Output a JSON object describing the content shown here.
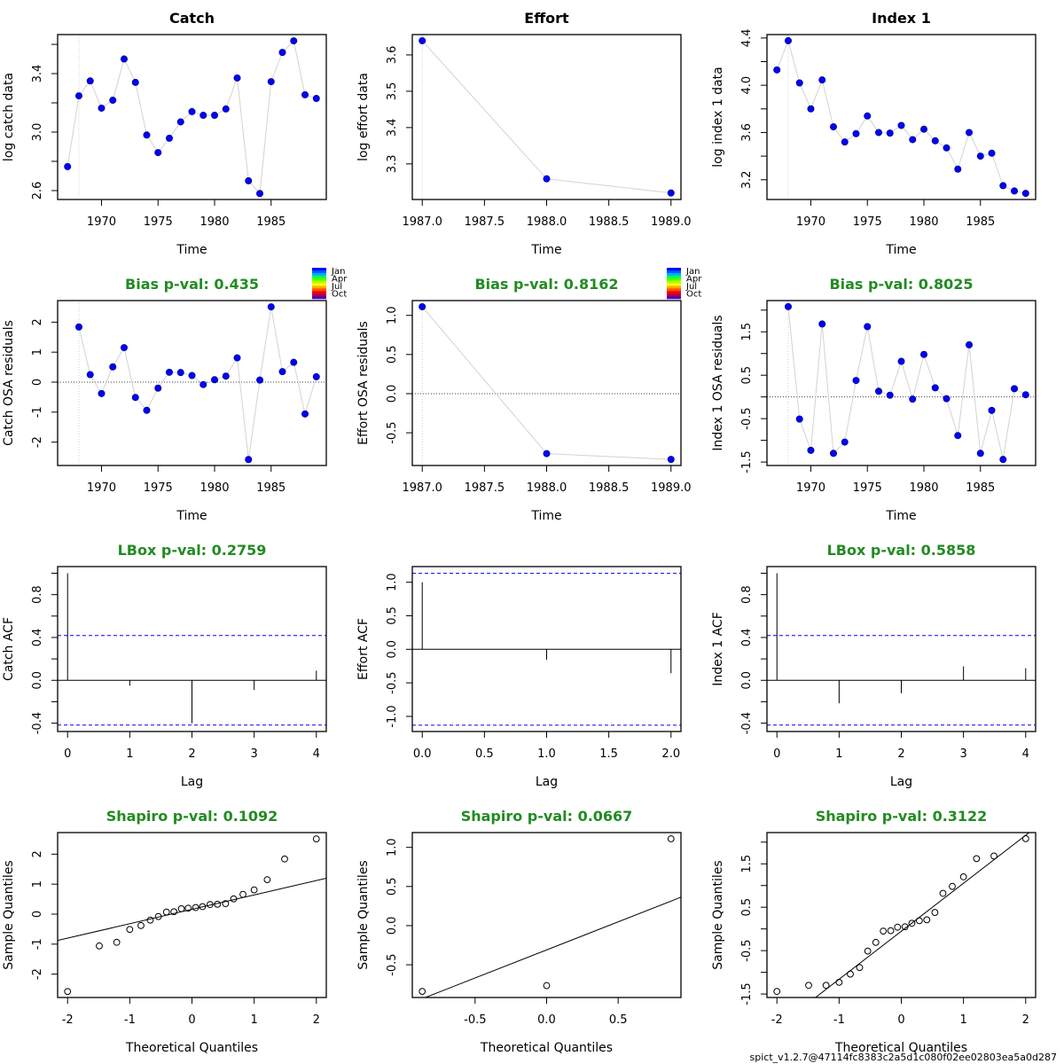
{
  "footer": "spict_v1.2.7@47114fc8383c2a5d1c080f02ee02803ea5a0d287",
  "month_legend": {
    "labels": [
      "Jan",
      "Apr",
      "Jul",
      "Oct"
    ],
    "colors": [
      "#0000FF",
      "#0055FF",
      "#00AAFF",
      "#00FF55",
      "#55FF00",
      "#AAFF00",
      "#FFFF00",
      "#FFAA00",
      "#FF5500",
      "#FF0000",
      "#AA0055",
      "#5500AA"
    ]
  },
  "colors": {
    "point_fill": "#0000FF",
    "line": "#d3d3d3",
    "pval_title": "#228B22",
    "conf_line": "#0000FF"
  },
  "chart_data": [
    {
      "id": "catch-data",
      "type": "line",
      "title": "Catch",
      "title_style": "main",
      "xlabel": "Time",
      "ylabel": "log catch data",
      "x": [
        1967,
        1968,
        1969,
        1970,
        1971,
        1972,
        1973,
        1974,
        1975,
        1976,
        1977,
        1978,
        1979,
        1980,
        1981,
        1982,
        1983,
        1984,
        1985,
        1986,
        1987,
        1988,
        1989
      ],
      "y": [
        2.764,
        3.248,
        3.35,
        3.164,
        3.218,
        3.5,
        3.34,
        2.98,
        2.86,
        2.958,
        3.07,
        3.14,
        3.115,
        3.115,
        3.158,
        3.37,
        2.667,
        2.58,
        3.345,
        3.545,
        3.624,
        3.255,
        3.23
      ],
      "xlim": [
        1966.12,
        1989.88
      ],
      "ylim": [
        2.539,
        3.667
      ],
      "xticks": [
        1970,
        1975,
        1980,
        1985
      ],
      "xtick_labels": [
        "1970",
        "1975",
        "1980",
        "1985"
      ],
      "yticks": [
        2.6,
        2.8,
        3.0,
        3.2,
        3.4,
        3.6
      ],
      "ytick_labels": [
        "2.6",
        "",
        "3.0",
        "",
        "3.4",
        ""
      ],
      "vline": 1968
    },
    {
      "id": "effort-data",
      "type": "line",
      "title": "Effort",
      "title_style": "main",
      "xlabel": "Time",
      "ylabel": "log effort data",
      "x": [
        1987,
        1988,
        1989
      ],
      "y": [
        3.639,
        3.259,
        3.22
      ],
      "xlim": [
        1986.92,
        1989.08
      ],
      "ylim": [
        3.202,
        3.656
      ],
      "xticks": [
        1987.0,
        1987.5,
        1988.0,
        1988.5,
        1989.0
      ],
      "xtick_labels": [
        "1987.0",
        "1987.5",
        "1988.0",
        "1988.5",
        "1989.0"
      ],
      "yticks": [
        3.3,
        3.4,
        3.5,
        3.6
      ],
      "ytick_labels": [
        "3.3",
        "3.4",
        "3.5",
        "3.6"
      ],
      "vline": 1987
    },
    {
      "id": "index1-data",
      "type": "line",
      "title": "Index 1",
      "title_style": "main",
      "xlabel": "Time",
      "ylabel": "log index 1 data",
      "x": [
        1967,
        1968,
        1969,
        1970,
        1971,
        1972,
        1973,
        1974,
        1975,
        1976,
        1977,
        1978,
        1979,
        1980,
        1981,
        1982,
        1983,
        1984,
        1985,
        1986,
        1987,
        1988,
        1989
      ],
      "y": [
        4.13,
        4.377,
        4.02,
        3.8,
        4.045,
        3.648,
        3.52,
        3.59,
        3.74,
        3.6,
        3.595,
        3.66,
        3.54,
        3.628,
        3.53,
        3.47,
        3.29,
        3.6,
        3.4,
        3.425,
        3.15,
        3.105,
        3.085
      ],
      "xlim": [
        1966.12,
        1989.88
      ],
      "ylim": [
        3.033,
        4.429
      ],
      "xticks": [
        1970,
        1975,
        1980,
        1985
      ],
      "xtick_labels": [
        "1970",
        "1975",
        "1980",
        "1985"
      ],
      "yticks": [
        3.2,
        3.4,
        3.6,
        3.8,
        4.0,
        4.2,
        4.4
      ],
      "ytick_labels": [
        "3.2",
        "",
        "3.6",
        "",
        "4.0",
        "",
        "4.4"
      ],
      "vline": 1968
    },
    {
      "id": "catch-osa",
      "type": "line",
      "title": "Bias p-val: 0.435",
      "title_style": "green",
      "xlabel": "Time",
      "ylabel": "Catch OSA residuals",
      "x": [
        1968,
        1969,
        1970,
        1971,
        1972,
        1973,
        1974,
        1975,
        1976,
        1977,
        1978,
        1979,
        1980,
        1981,
        1982,
        1983,
        1984,
        1985,
        1986,
        1987,
        1988,
        1989
      ],
      "y": [
        1.84,
        0.25,
        -0.38,
        0.51,
        1.15,
        -0.51,
        -0.94,
        -0.2,
        0.33,
        0.32,
        0.22,
        -0.08,
        0.08,
        0.2,
        0.81,
        -2.58,
        0.07,
        2.51,
        0.35,
        0.66,
        -1.06,
        0.18
      ],
      "xlim": [
        1966.12,
        1989.88
      ],
      "ylim": [
        -2.78,
        2.72
      ],
      "xticks": [
        1970,
        1975,
        1980,
        1985
      ],
      "xtick_labels": [
        "1970",
        "1975",
        "1980",
        "1985"
      ],
      "yticks": [
        -2,
        -1,
        0,
        1,
        2
      ],
      "ytick_labels": [
        "-2",
        "-1",
        "0",
        "1",
        "2"
      ],
      "hline": 0,
      "vline": 1968,
      "month_legend": true
    },
    {
      "id": "effort-osa",
      "type": "line",
      "title": "Bias p-val: 0.8162",
      "title_style": "green",
      "xlabel": "Time",
      "ylabel": "Effort OSA residuals",
      "x": [
        1987,
        1988,
        1989
      ],
      "y": [
        1.11,
        -0.766,
        -0.84
      ],
      "xlim": [
        1986.92,
        1989.08
      ],
      "ylim": [
        -0.918,
        1.189
      ],
      "xticks": [
        1987.0,
        1987.5,
        1988.0,
        1988.5,
        1989.0
      ],
      "xtick_labels": [
        "1987.0",
        "1987.5",
        "1988.0",
        "1988.5",
        "1989.0"
      ],
      "yticks": [
        -0.5,
        0.0,
        0.5,
        1.0
      ],
      "ytick_labels": [
        "-0.5",
        "0.0",
        "0.5",
        "1.0"
      ],
      "hline": 0,
      "vline": 1987,
      "month_legend": true
    },
    {
      "id": "index1-osa",
      "type": "line",
      "title": "Bias p-val: 0.8025",
      "title_style": "green",
      "xlabel": "Time",
      "ylabel": "Index 1 OSA residuals",
      "x": [
        1968,
        1969,
        1970,
        1971,
        1972,
        1973,
        1974,
        1975,
        1976,
        1977,
        1978,
        1979,
        1980,
        1981,
        1982,
        1983,
        1984,
        1985,
        1986,
        1987,
        1988,
        1989
      ],
      "y": [
        2.08,
        -0.51,
        -1.23,
        1.68,
        -1.3,
        -1.04,
        0.38,
        1.62,
        0.13,
        0.04,
        0.82,
        -0.05,
        0.98,
        0.21,
        -0.04,
        -0.89,
        1.2,
        -1.3,
        -0.31,
        -1.44,
        0.19,
        0.05
      ],
      "xlim": [
        1966.12,
        1989.88
      ],
      "ylim": [
        -1.58,
        2.22
      ],
      "xticks": [
        1970,
        1975,
        1980,
        1985
      ],
      "xtick_labels": [
        "1970",
        "1975",
        "1980",
        "1985"
      ],
      "yticks": [
        -1.5,
        -1.0,
        -0.5,
        0.0,
        0.5,
        1.0,
        1.5,
        2.0
      ],
      "ytick_labels": [
        "-1.5",
        "",
        "-0.5",
        "",
        "0.5",
        "",
        "1.5",
        ""
      ],
      "hline": 0,
      "vline": 1968
    },
    {
      "id": "catch-acf",
      "type": "bar",
      "title": "LBox p-val: 0.2759",
      "title_style": "green",
      "xlabel": "Lag",
      "ylabel": "Catch ACF",
      "x": [
        0,
        1,
        2,
        3,
        4
      ],
      "y": [
        1.0,
        -0.05,
        -0.4,
        -0.09,
        0.09
      ],
      "conf": 0.418,
      "xlim": [
        -0.16,
        4.16
      ],
      "ylim": [
        -0.478,
        1.062
      ],
      "xticks": [
        0,
        1,
        2,
        3,
        4
      ],
      "xtick_labels": [
        "0",
        "1",
        "2",
        "3",
        "4"
      ],
      "yticks": [
        -0.4,
        -0.2,
        0.0,
        0.2,
        0.4,
        0.6,
        0.8,
        1.0
      ],
      "ytick_labels": [
        "-0.4",
        "",
        "0.0",
        "",
        "0.4",
        "",
        "0.8",
        ""
      ]
    },
    {
      "id": "effort-acf",
      "type": "bar",
      "title": "",
      "title_style": "green",
      "xlabel": "Lag",
      "ylabel": "Effort ACF",
      "x": [
        0,
        1,
        2
      ],
      "y": [
        1.0,
        -0.154,
        -0.357
      ],
      "conf": 1.1316,
      "xlim": [
        -0.08,
        2.08
      ],
      "ylim": [
        -1.225,
        1.233
      ],
      "xticks": [
        0.0,
        0.5,
        1.0,
        1.5,
        2.0
      ],
      "xtick_labels": [
        "0.0",
        "0.5",
        "1.0",
        "1.5",
        "2.0"
      ],
      "yticks": [
        -1.0,
        -0.5,
        0.0,
        0.5,
        1.0
      ],
      "ytick_labels": [
        "-1.0",
        "-0.5",
        "0.0",
        "0.5",
        "1.0"
      ]
    },
    {
      "id": "index1-acf",
      "type": "bar",
      "title": "LBox p-val: 0.5858",
      "title_style": "green",
      "xlabel": "Lag",
      "ylabel": "Index 1 ACF",
      "x": [
        0,
        1,
        2,
        3,
        4
      ],
      "y": [
        1.0,
        -0.215,
        -0.12,
        0.13,
        0.113
      ],
      "conf": 0.418,
      "xlim": [
        -0.16,
        4.16
      ],
      "ylim": [
        -0.478,
        1.062
      ],
      "xticks": [
        0,
        1,
        2,
        3,
        4
      ],
      "xtick_labels": [
        "0",
        "1",
        "2",
        "3",
        "4"
      ],
      "yticks": [
        -0.4,
        -0.2,
        0.0,
        0.2,
        0.4,
        0.6,
        0.8,
        1.0
      ],
      "ytick_labels": [
        "-0.4",
        "",
        "0.0",
        "",
        "0.4",
        "",
        "0.8",
        ""
      ]
    },
    {
      "id": "catch-qq",
      "type": "scatter",
      "title": "Shapiro p-val: 0.1092",
      "title_style": "green",
      "xlabel": "Theoretical Quantiles",
      "ylabel": "Sample Quantiles",
      "x": [
        -2.0,
        -1.49,
        -1.21,
        -1.0,
        -0.82,
        -0.67,
        -0.54,
        -0.41,
        -0.29,
        -0.17,
        -0.06,
        0.06,
        0.17,
        0.29,
        0.41,
        0.54,
        0.67,
        0.82,
        1.0,
        1.21,
        1.49,
        2.0
      ],
      "y": [
        -2.58,
        -1.06,
        -0.94,
        -0.51,
        -0.38,
        -0.2,
        -0.08,
        0.07,
        0.08,
        0.18,
        0.2,
        0.22,
        0.25,
        0.32,
        0.33,
        0.35,
        0.51,
        0.66,
        0.81,
        1.15,
        1.84,
        2.51
      ],
      "qqline": {
        "slope": 0.48,
        "intercept": 0.16
      },
      "xlim": [
        -2.16,
        2.16
      ],
      "ylim": [
        -2.78,
        2.72
      ],
      "xticks": [
        -2,
        -1,
        0,
        1,
        2
      ],
      "xtick_labels": [
        "-2",
        "-1",
        "0",
        "1",
        "2"
      ],
      "yticks": [
        -2,
        -1,
        0,
        1,
        2
      ],
      "ytick_labels": [
        "-2",
        "-1",
        "0",
        "1",
        "2"
      ]
    },
    {
      "id": "effort-qq",
      "type": "scatter",
      "title": "Shapiro p-val: 0.0667",
      "title_style": "green",
      "xlabel": "Theoretical Quantiles",
      "ylabel": "Sample Quantiles",
      "x": [
        -0.8694,
        0.0,
        0.8694
      ],
      "y": [
        -0.84,
        -0.766,
        1.11
      ],
      "qqline": {
        "slope": 0.717,
        "intercept": -0.31
      },
      "xlim": [
        -0.9389,
        0.9389
      ],
      "ylim": [
        -0.918,
        1.189
      ],
      "xticks": [
        -0.5,
        0.0,
        0.5
      ],
      "xtick_labels": [
        "-0.5",
        "0.0",
        "0.5"
      ],
      "yticks": [
        -0.5,
        0.0,
        0.5,
        1.0
      ],
      "ytick_labels": [
        "-0.5",
        "0.0",
        "0.5",
        "1.0"
      ]
    },
    {
      "id": "index1-qq",
      "type": "scatter",
      "title": "Shapiro p-val: 0.3122",
      "title_style": "green",
      "xlabel": "Theoretical Quantiles",
      "ylabel": "Sample Quantiles",
      "x": [
        -2.0,
        -1.49,
        -1.21,
        -1.0,
        -0.82,
        -0.67,
        -0.54,
        -0.41,
        -0.29,
        -0.17,
        -0.06,
        0.06,
        0.17,
        0.29,
        0.41,
        0.54,
        0.67,
        0.82,
        1.0,
        1.21,
        1.49,
        2.0
      ],
      "y": [
        -1.44,
        -1.3,
        -1.3,
        -1.23,
        -1.04,
        -0.89,
        -0.51,
        -0.31,
        -0.05,
        -0.04,
        0.04,
        0.05,
        0.13,
        0.19,
        0.21,
        0.38,
        0.82,
        0.98,
        1.2,
        1.62,
        1.68,
        2.08
      ],
      "qqline": {
        "slope": 1.106,
        "intercept": -0.054
      },
      "xlim": [
        -2.16,
        2.16
      ],
      "ylim": [
        -1.58,
        2.22
      ],
      "xticks": [
        -2,
        -1,
        0,
        1,
        2
      ],
      "xtick_labels": [
        "-2",
        "-1",
        "0",
        "1",
        "2"
      ],
      "yticks": [
        -1.5,
        -1.0,
        -0.5,
        0.0,
        0.5,
        1.0,
        1.5,
        2.0
      ],
      "ytick_labels": [
        "-1.5",
        "",
        "-0.5",
        "",
        "0.5",
        "",
        "1.5",
        ""
      ]
    }
  ]
}
